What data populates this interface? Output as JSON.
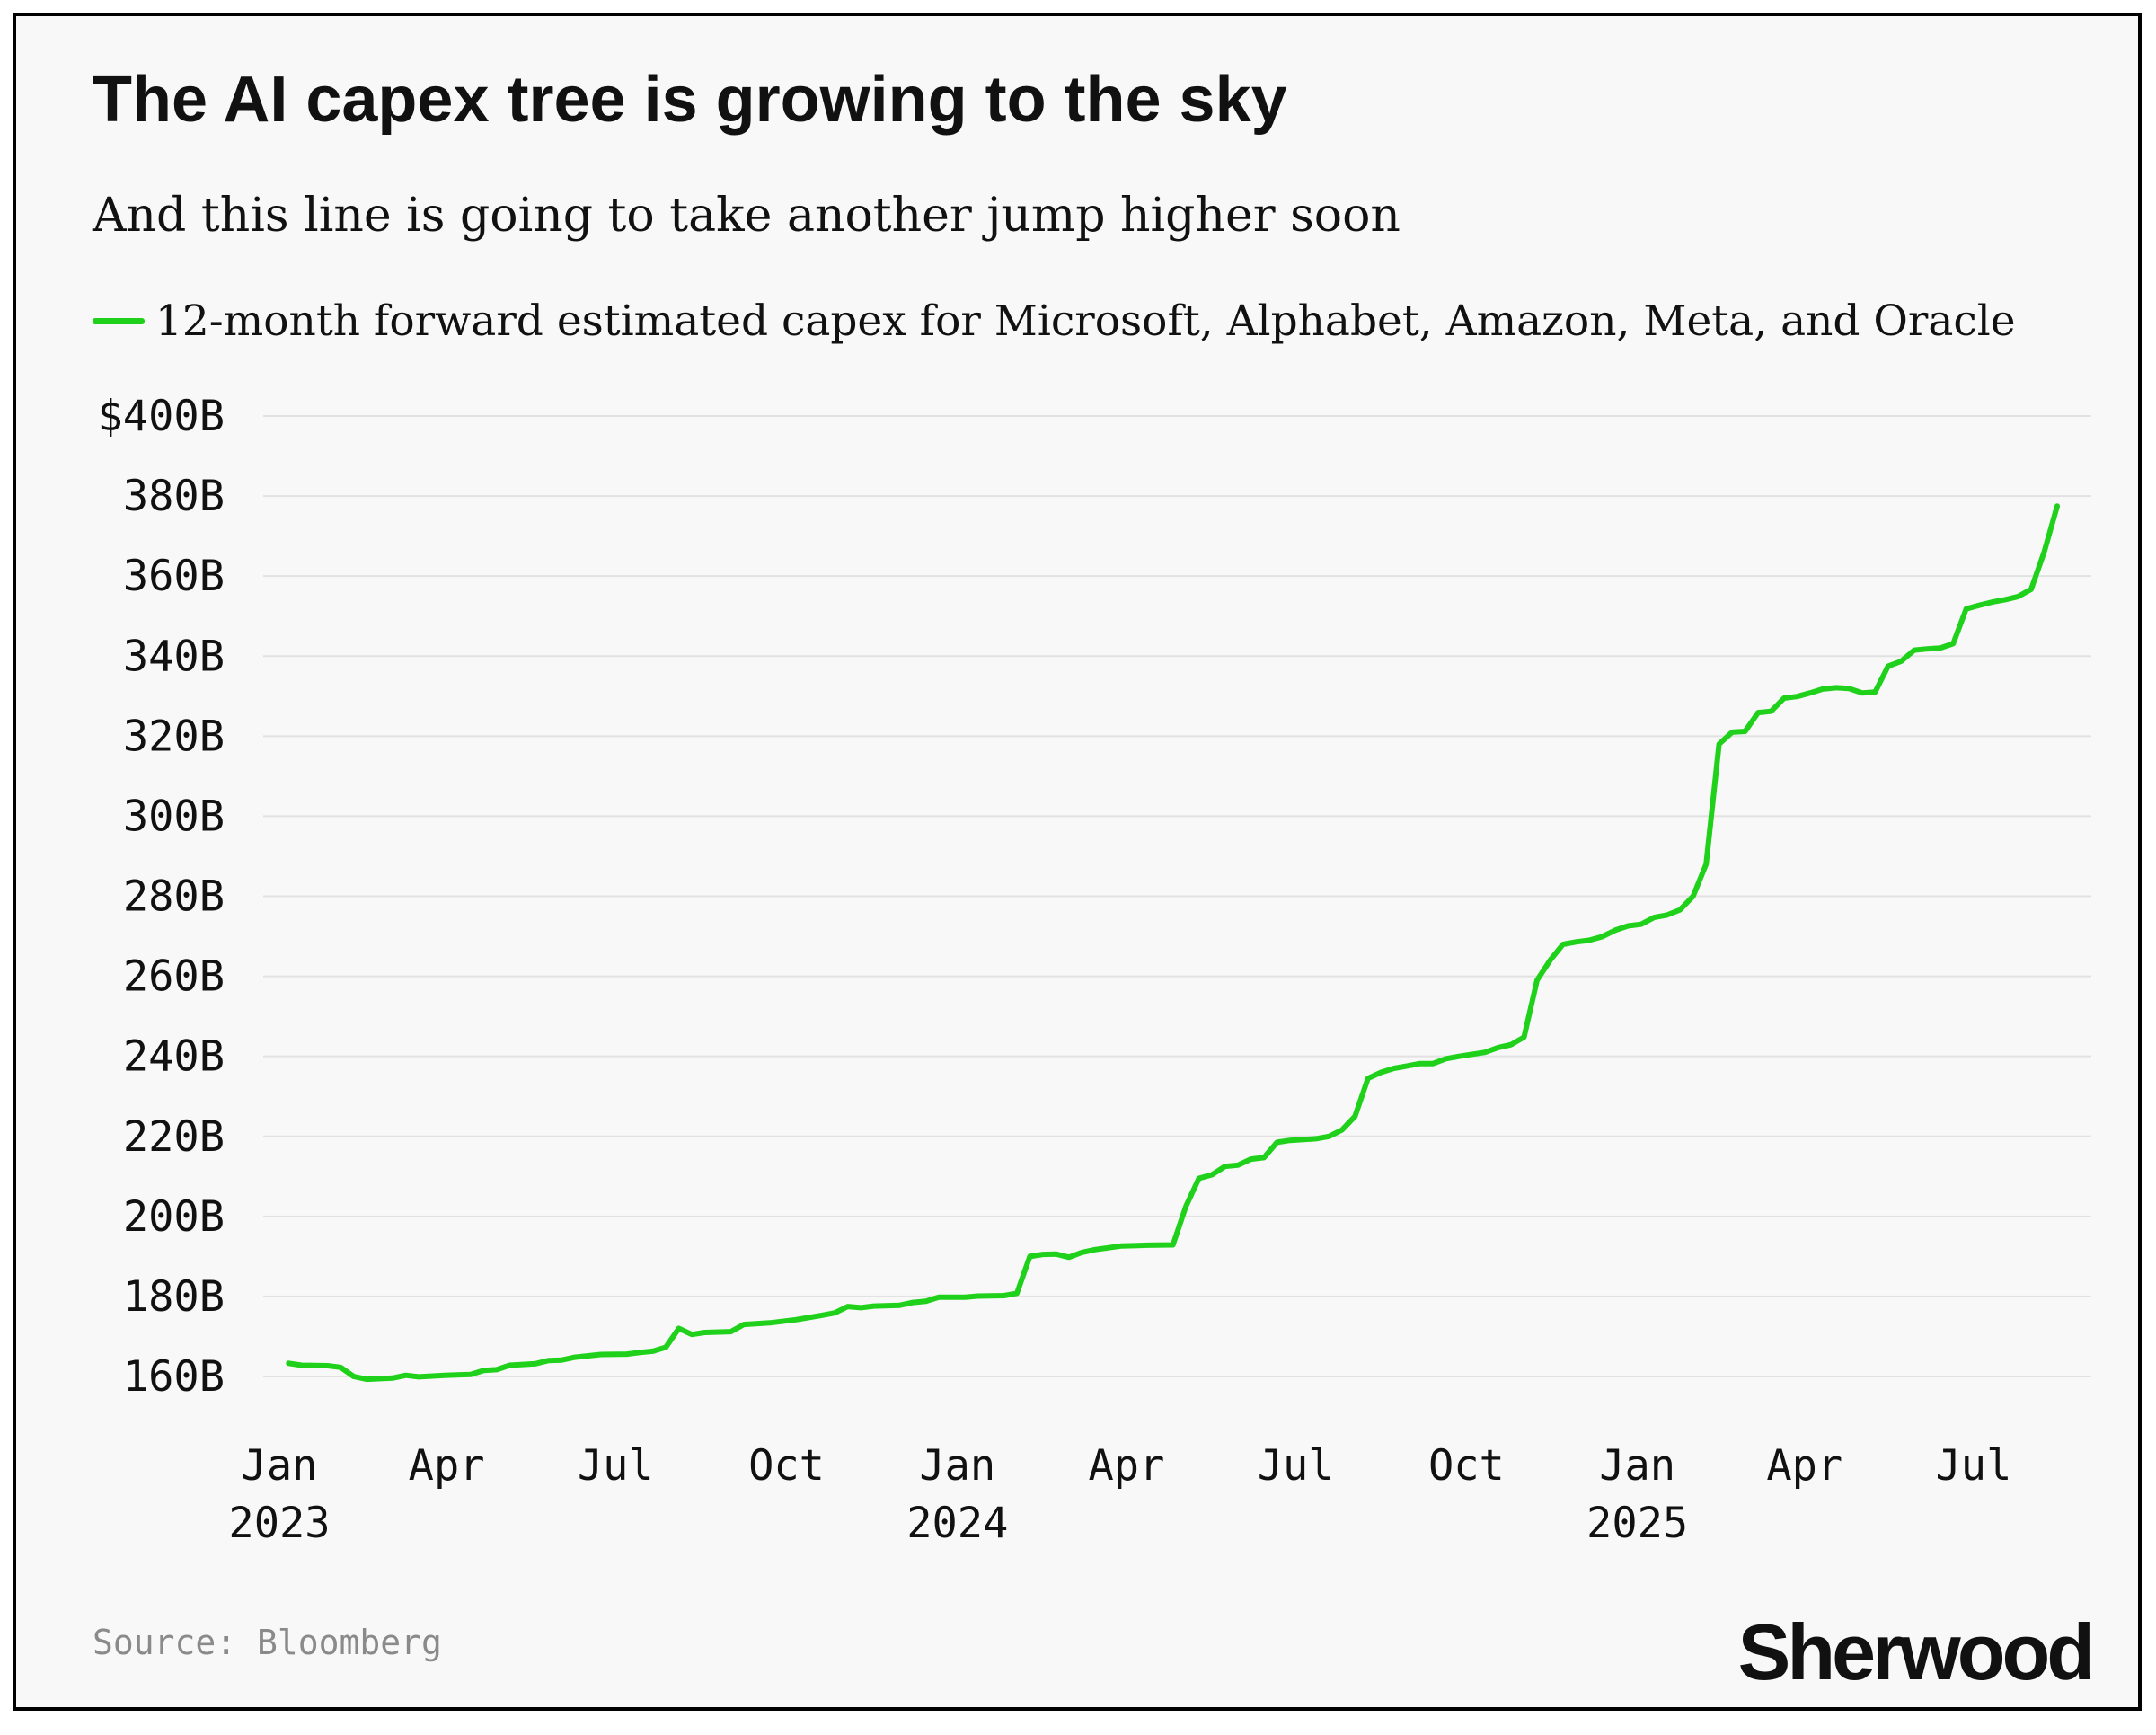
{
  "header": {
    "title": "The AI capex tree is growing to the sky",
    "subtitle": "And this line is going to take another jump higher soon"
  },
  "footer": {
    "source": "Source: Bloomberg",
    "brand": "Sherwood"
  },
  "colors": {
    "series": "#1fd11a",
    "grid": "#e2e2e2",
    "background": "#f8f8f8"
  },
  "chart_data": {
    "type": "line",
    "title": "The AI capex tree is growing to the sky",
    "subtitle": "And this line is going to take another jump higher soon",
    "xlabel": "",
    "ylabel": "",
    "grid": true,
    "legend_position": "top-left",
    "xlim": [
      "2023-01-01",
      "2025-08-15"
    ],
    "ylim": [
      160,
      400
    ],
    "y_ticks": [
      {
        "value": 400,
        "label": "$400B"
      },
      {
        "value": 380,
        "label": "380B"
      },
      {
        "value": 360,
        "label": "360B"
      },
      {
        "value": 340,
        "label": "340B"
      },
      {
        "value": 320,
        "label": "320B"
      },
      {
        "value": 300,
        "label": "300B"
      },
      {
        "value": 280,
        "label": "280B"
      },
      {
        "value": 260,
        "label": "260B"
      },
      {
        "value": 240,
        "label": "240B"
      },
      {
        "value": 220,
        "label": "220B"
      },
      {
        "value": 200,
        "label": "200B"
      },
      {
        "value": 180,
        "label": "180B"
      },
      {
        "value": 160,
        "label": "160B"
      }
    ],
    "x_ticks": [
      {
        "date": "2023-01-01",
        "label": "Jan",
        "year": "2023"
      },
      {
        "date": "2023-04-01",
        "label": "Apr",
        "year": ""
      },
      {
        "date": "2023-07-01",
        "label": "Jul",
        "year": ""
      },
      {
        "date": "2023-10-01",
        "label": "Oct",
        "year": ""
      },
      {
        "date": "2024-01-01",
        "label": "Jan",
        "year": "2024"
      },
      {
        "date": "2024-04-01",
        "label": "Apr",
        "year": ""
      },
      {
        "date": "2024-07-01",
        "label": "Jul",
        "year": ""
      },
      {
        "date": "2024-10-01",
        "label": "Oct",
        "year": ""
      },
      {
        "date": "2025-01-01",
        "label": "Jan",
        "year": "2025"
      },
      {
        "date": "2025-04-01",
        "label": "Apr",
        "year": ""
      },
      {
        "date": "2025-07-01",
        "label": "Jul",
        "year": ""
      }
    ],
    "series": [
      {
        "name": "12-month forward estimated capex for Microsoft, Alphabet, Amazon, Meta, and Oracle",
        "color": "#1fd11a",
        "points": [
          [
            "2023-01-06",
            163.3
          ],
          [
            "2023-01-13",
            162.8
          ],
          [
            "2023-01-27",
            162.7
          ],
          [
            "2023-02-03",
            162.3
          ],
          [
            "2023-02-10",
            160.0
          ],
          [
            "2023-02-17",
            159.3
          ],
          [
            "2023-03-03",
            159.6
          ],
          [
            "2023-03-10",
            160.3
          ],
          [
            "2023-03-17",
            159.9
          ],
          [
            "2023-03-31",
            160.3
          ],
          [
            "2023-04-14",
            160.5
          ],
          [
            "2023-04-21",
            161.5
          ],
          [
            "2023-04-28",
            161.7
          ],
          [
            "2023-05-05",
            162.8
          ],
          [
            "2023-05-19",
            163.2
          ],
          [
            "2023-05-26",
            164.0
          ],
          [
            "2023-06-02",
            164.1
          ],
          [
            "2023-06-09",
            164.8
          ],
          [
            "2023-06-23",
            165.5
          ],
          [
            "2023-07-07",
            165.6
          ],
          [
            "2023-07-14",
            166.0
          ],
          [
            "2023-07-21",
            166.3
          ],
          [
            "2023-07-28",
            167.3
          ],
          [
            "2023-08-04",
            172.0
          ],
          [
            "2023-08-11",
            170.5
          ],
          [
            "2023-08-18",
            171.0
          ],
          [
            "2023-09-01",
            171.2
          ],
          [
            "2023-09-08",
            173.0
          ],
          [
            "2023-09-22",
            173.4
          ],
          [
            "2023-10-06",
            174.2
          ],
          [
            "2023-10-20",
            175.3
          ],
          [
            "2023-10-27",
            175.9
          ],
          [
            "2023-11-03",
            177.5
          ],
          [
            "2023-11-10",
            177.2
          ],
          [
            "2023-11-17",
            177.6
          ],
          [
            "2023-12-01",
            177.8
          ],
          [
            "2023-12-08",
            178.5
          ],
          [
            "2023-12-15",
            178.8
          ],
          [
            "2023-12-22",
            179.8
          ],
          [
            "2024-01-05",
            179.8
          ],
          [
            "2024-01-12",
            180.1
          ],
          [
            "2024-01-26",
            180.2
          ],
          [
            "2024-02-02",
            180.8
          ],
          [
            "2024-02-09",
            190.0
          ],
          [
            "2024-02-16",
            190.5
          ],
          [
            "2024-02-23",
            190.6
          ],
          [
            "2024-03-01",
            189.8
          ],
          [
            "2024-03-08",
            191.0
          ],
          [
            "2024-03-15",
            191.7
          ],
          [
            "2024-03-29",
            192.6
          ],
          [
            "2024-04-12",
            192.8
          ],
          [
            "2024-04-26",
            192.9
          ],
          [
            "2024-05-03",
            202.5
          ],
          [
            "2024-05-10",
            209.5
          ],
          [
            "2024-05-17",
            210.4
          ],
          [
            "2024-05-24",
            212.5
          ],
          [
            "2024-05-31",
            212.8
          ],
          [
            "2024-06-07",
            214.3
          ],
          [
            "2024-06-14",
            214.7
          ],
          [
            "2024-06-21",
            218.5
          ],
          [
            "2024-06-28",
            219.0
          ],
          [
            "2024-07-12",
            219.4
          ],
          [
            "2024-07-19",
            220.0
          ],
          [
            "2024-07-26",
            221.6
          ],
          [
            "2024-08-02",
            225.0
          ],
          [
            "2024-08-09",
            234.5
          ],
          [
            "2024-08-16",
            236.0
          ],
          [
            "2024-08-23",
            237.0
          ],
          [
            "2024-08-30",
            237.6
          ],
          [
            "2024-09-06",
            238.2
          ],
          [
            "2024-09-13",
            238.2
          ],
          [
            "2024-09-20",
            239.4
          ],
          [
            "2024-09-27",
            240.0
          ],
          [
            "2024-10-11",
            241.0
          ],
          [
            "2024-10-18",
            242.2
          ],
          [
            "2024-10-25",
            242.9
          ],
          [
            "2024-11-01",
            244.8
          ],
          [
            "2024-11-08",
            259.0
          ],
          [
            "2024-11-15",
            264.0
          ],
          [
            "2024-11-22",
            268.0
          ],
          [
            "2024-11-29",
            268.6
          ],
          [
            "2024-12-06",
            269.0
          ],
          [
            "2024-12-13",
            269.9
          ],
          [
            "2024-12-20",
            271.5
          ],
          [
            "2024-12-27",
            272.6
          ],
          [
            "2025-01-03",
            273.0
          ],
          [
            "2025-01-10",
            274.7
          ],
          [
            "2025-01-17",
            275.3
          ],
          [
            "2025-01-24",
            276.6
          ],
          [
            "2025-01-31",
            280.0
          ],
          [
            "2025-02-07",
            288.0
          ],
          [
            "2025-02-14",
            318.0
          ],
          [
            "2025-02-21",
            321.0
          ],
          [
            "2025-02-28",
            321.2
          ],
          [
            "2025-03-07",
            325.9
          ],
          [
            "2025-03-14",
            326.2
          ],
          [
            "2025-03-21",
            329.5
          ],
          [
            "2025-03-28",
            329.9
          ],
          [
            "2025-04-04",
            330.8
          ],
          [
            "2025-04-11",
            331.8
          ],
          [
            "2025-04-18",
            332.1
          ],
          [
            "2025-04-25",
            331.9
          ],
          [
            "2025-05-02",
            330.8
          ],
          [
            "2025-05-09",
            331.0
          ],
          [
            "2025-05-16",
            337.5
          ],
          [
            "2025-05-23",
            338.7
          ],
          [
            "2025-05-30",
            341.5
          ],
          [
            "2025-06-06",
            341.8
          ],
          [
            "2025-06-13",
            342.0
          ],
          [
            "2025-06-20",
            343.1
          ],
          [
            "2025-06-27",
            351.8
          ],
          [
            "2025-07-04",
            352.7
          ],
          [
            "2025-07-11",
            353.5
          ],
          [
            "2025-07-18",
            354.1
          ],
          [
            "2025-07-25",
            354.9
          ],
          [
            "2025-08-01",
            356.7
          ],
          [
            "2025-08-08",
            366.0
          ],
          [
            "2025-08-15",
            377.5
          ]
        ]
      }
    ]
  }
}
